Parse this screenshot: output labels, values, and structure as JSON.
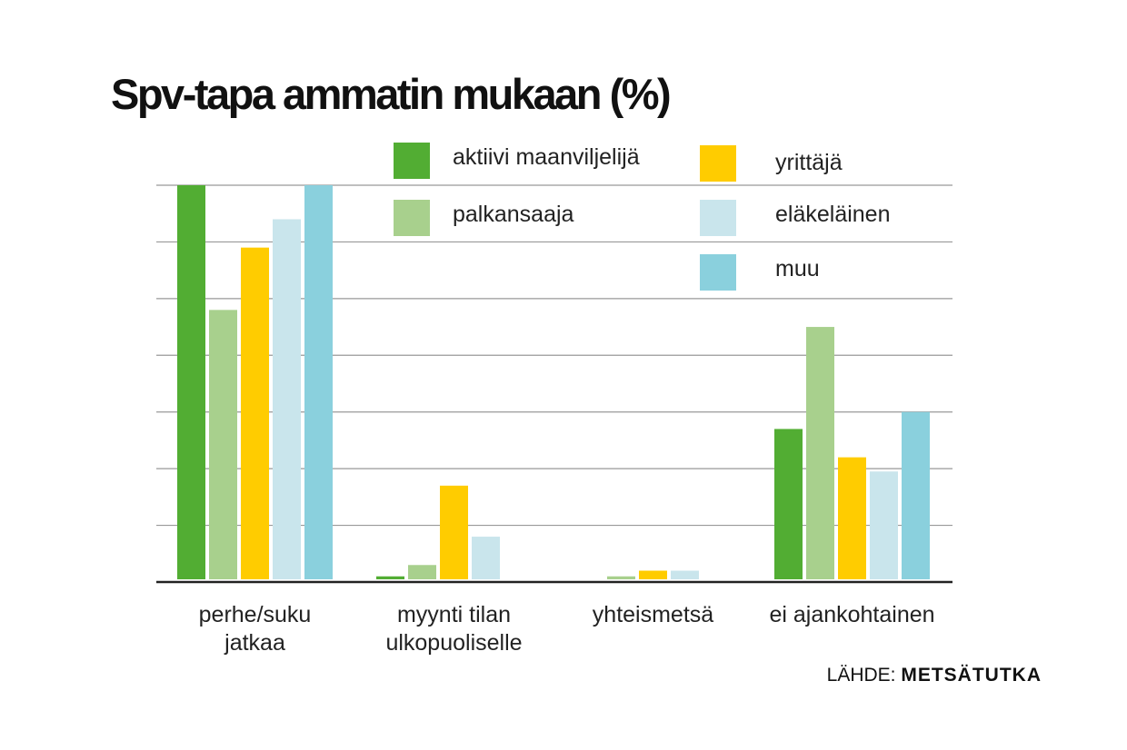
{
  "chart_data": {
    "type": "bar",
    "title": "Spv-tapa ammatin mukaan (%)",
    "categories": [
      [
        "perhe/suku",
        "jatkaa"
      ],
      [
        "myynti tilan",
        "ulkopuoliselle"
      ],
      [
        "yhteismetsä"
      ],
      [
        "ei ajankohtainen"
      ]
    ],
    "series": [
      {
        "name": "aktiivi maanviljelijä",
        "color": "#52ad33",
        "values": [
          70,
          1,
          0,
          27
        ]
      },
      {
        "name": "palkansaaja",
        "color": "#a8d08d",
        "values": [
          48,
          3,
          1,
          45
        ]
      },
      {
        "name": "yrittäjä",
        "color": "#ffcc00",
        "values": [
          59,
          17,
          2,
          22
        ]
      },
      {
        "name": "eläkeläinen",
        "color": "#c9e5ec",
        "values": [
          64,
          8,
          2,
          19.5
        ]
      },
      {
        "name": "muu",
        "color": "#8ad0dd",
        "values": [
          70,
          0,
          0,
          30
        ]
      }
    ],
    "ylim": [
      0,
      70
    ],
    "grid": true,
    "gridStep": 10,
    "yTickLabels": false,
    "legend": "top-right",
    "source_label": "LÄHDE:",
    "source_name": "METSÄTUTKA"
  }
}
